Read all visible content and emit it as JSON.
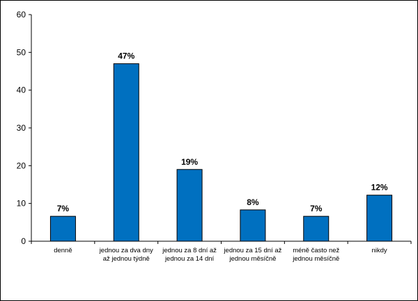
{
  "chart_data": {
    "type": "bar",
    "categories": [
      [
        "denně"
      ],
      [
        "jednou za dva dny",
        "až jednou týdně"
      ],
      [
        "jednou za 8 dní až",
        "jednou za 14 dní"
      ],
      [
        "jednou za 15 dní až",
        "jednou měsíčně"
      ],
      [
        "méně často než",
        "jednou měsíčně"
      ],
      [
        "nikdy"
      ]
    ],
    "values": [
      6.6,
      47,
      19,
      8.3,
      6.6,
      12.2
    ],
    "data_labels": [
      "7%",
      "47%",
      "19%",
      "8%",
      "7%",
      "12%"
    ],
    "ylim": [
      0,
      60
    ],
    "yticks": [
      0,
      10,
      20,
      30,
      40,
      50,
      60
    ],
    "grid": false,
    "legend": "none",
    "bar_color": "#0070c0"
  }
}
